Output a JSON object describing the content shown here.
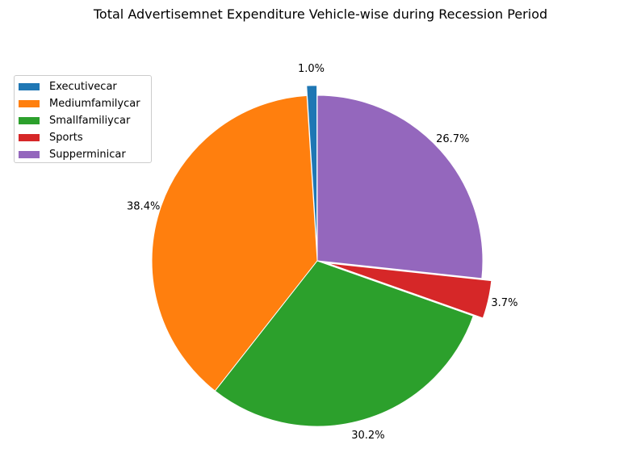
{
  "chart_data": {
    "type": "pie",
    "title": "Total Advertisemnet Expenditure Vehicle-wise during Recession Period",
    "categories": [
      "Executivecar",
      "Mediumfamilycar",
      "Smallfamiliycar",
      "Sports",
      "Supperminicar"
    ],
    "values": [
      1.0,
      38.4,
      30.2,
      3.7,
      26.7
    ],
    "labels": [
      "1.0%",
      "38.4%",
      "30.2%",
      "3.7%",
      "26.7%"
    ],
    "colors": [
      "#1f77b4",
      "#ff7f0e",
      "#2ca02c",
      "#d62728",
      "#9467bd"
    ],
    "explode": [
      0.06,
      0,
      0,
      0.06,
      0
    ],
    "start_angle_deg": 90,
    "legend_position": "upper-left"
  }
}
